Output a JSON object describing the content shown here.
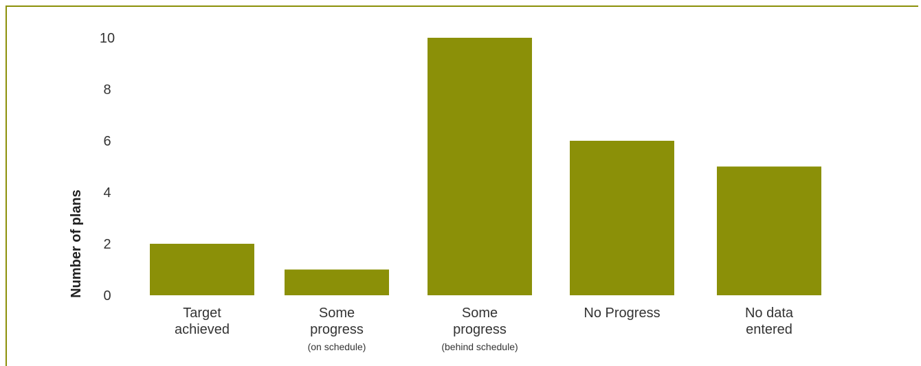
{
  "colors": {
    "bar": "#8b9008",
    "border": "#8b9008",
    "text": "#333333"
  },
  "chart_data": {
    "type": "bar",
    "ylabel": "Number of plans",
    "xlabel": "",
    "ylim": [
      0,
      10
    ],
    "yticks": [
      0,
      2,
      4,
      6,
      8,
      10
    ],
    "grid": false,
    "categories": [
      {
        "lines": [
          "Target",
          "achieved"
        ],
        "sub": ""
      },
      {
        "lines": [
          "Some",
          "progress"
        ],
        "sub": "(on schedule)"
      },
      {
        "lines": [
          "Some",
          "progress"
        ],
        "sub": "(behind schedule)"
      },
      {
        "lines": [
          "No Progress"
        ],
        "sub": ""
      },
      {
        "lines": [
          "No data",
          "entered"
        ],
        "sub": ""
      }
    ],
    "values": [
      2,
      1,
      10,
      6,
      5
    ]
  }
}
